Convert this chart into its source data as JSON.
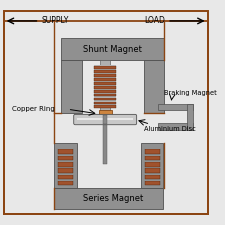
{
  "bg_color": "#e8e8e8",
  "wire_color": "#8B4513",
  "gray_color": "#909090",
  "gray_dark": "#505050",
  "gray_light": "#b0b0b0",
  "coil_color": "#A0522D",
  "coil_gap_color": "#808080",
  "disc_color": "#c8c8c8",
  "disc_highlight": "#e8e8e8",
  "shaft_color": "#888888",
  "white": "#f5f5f0",
  "labels": {
    "supply": "SUPPLY",
    "load": "LOAD",
    "shunt_magnet": "Shunt Magnet",
    "series_magnet": "Series Magnet",
    "copper_ring": "Copper Ring",
    "aluminium_disc": "Aluminium Disc",
    "braking_magnet": "Braking Magnet"
  },
  "figsize": [
    2.25,
    2.25
  ],
  "dpi": 100
}
